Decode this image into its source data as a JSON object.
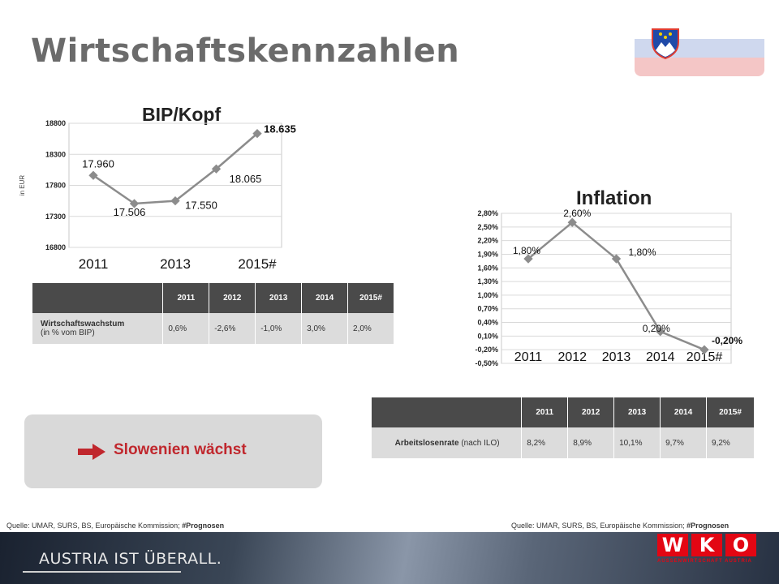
{
  "title": "Wirtschaftskennzahlen",
  "chart_data": [
    {
      "type": "line",
      "title": "BIP/Kopf",
      "ylabel": "in EUR",
      "xlabel": "",
      "x": [
        "2011",
        "2012",
        "2013",
        "2014",
        "2015#"
      ],
      "x_tick_labels": [
        "2011",
        "2013",
        "2015#"
      ],
      "y_ticks": [
        "18800",
        "18300",
        "17800",
        "17300",
        "16800"
      ],
      "ylim": [
        16800,
        18800
      ],
      "grid": true,
      "values": [
        17960,
        17506,
        17550,
        18065,
        18635
      ],
      "data_labels": [
        "17.960",
        "17.506",
        "17.550",
        "18.065",
        "18.635"
      ],
      "color": "#8c8c8c"
    },
    {
      "type": "line",
      "title": "Inflation",
      "ylabel": "",
      "xlabel": "",
      "x": [
        "2011",
        "2012",
        "2013",
        "2014",
        "2015#"
      ],
      "x_tick_labels": [
        "2011",
        "2012",
        "2013",
        "2014",
        "2015#"
      ],
      "y_ticks": [
        "2,80%",
        "2,50%",
        "2,20%",
        "1,90%",
        "1,60%",
        "1,30%",
        "1,00%",
        "0,70%",
        "0,40%",
        "0,10%",
        "-0,20%",
        "-0,50%"
      ],
      "ylim": [
        -0.5,
        2.8
      ],
      "grid": true,
      "values": [
        1.8,
        2.6,
        1.8,
        0.2,
        -0.2
      ],
      "data_labels": [
        "1,80%",
        "2,60%",
        "1,80%",
        "0,20%",
        "-0,20%"
      ],
      "color": "#8c8c8c"
    }
  ],
  "table_growth": {
    "headers": [
      "",
      "2011",
      "2012",
      "2013",
      "2014",
      "2015#"
    ],
    "row_label_bold": "Wirtschaftswachstum",
    "row_label_sub": "(in % vom BIP)",
    "values": [
      "0,6%",
      "-2,6%",
      "-1,0%",
      "3,0%",
      "2,0%"
    ]
  },
  "table_unemployment": {
    "headers": [
      "",
      "2011",
      "2012",
      "2013",
      "2014",
      "2015#"
    ],
    "row_label_bold": "Arbeitslosenrate",
    "row_label_sub": "(nach ILO)",
    "values": [
      "8,2%",
      "8,9%",
      "10,1%",
      "9,7%",
      "9,2%"
    ]
  },
  "callout": {
    "text": "Slowenien wächst",
    "arrow_icon": "right-arrow-icon",
    "color": "#c0272d"
  },
  "source_left": {
    "text": "Quelle: UMAR, SURS, BS, Europäische Kommission; ",
    "bold": "#Prognosen"
  },
  "source_right": {
    "text": "Quelle: UMAR, SURS, BS, Europäische Kommission; ",
    "bold": "#Prognosen"
  },
  "footer": {
    "slogan": "AUSTRIA IST ÜBERALL.",
    "logo_letters": [
      "W",
      "K",
      "O"
    ],
    "logo_sub": "AUSSENWIRTSCHAFT AUSTRIA",
    "logo_color": "#e30613"
  }
}
